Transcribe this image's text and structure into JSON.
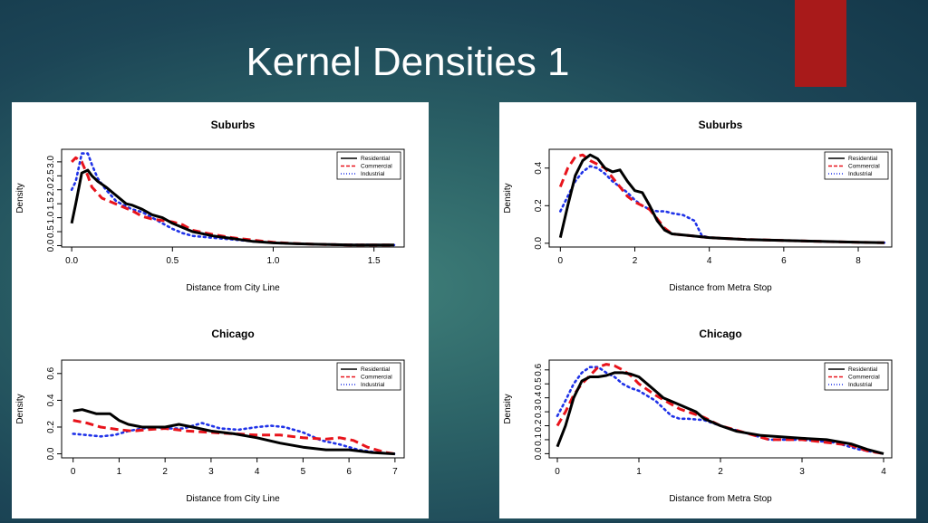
{
  "slide": {
    "title": "Kernel Densities 1"
  },
  "colors": {
    "residential": "#000000",
    "commercial": "#e8131b",
    "industrial": "#1f32e8",
    "accent": "#a81a1a"
  },
  "chart_data": [
    {
      "id": "suburbs-city-line",
      "type": "line",
      "title": "Suburbs",
      "xlabel": "Distance from City Line",
      "ylabel": "Density",
      "xlim": [
        -0.05,
        1.65
      ],
      "ylim": [
        -0.05,
        3.45
      ],
      "xticks": [
        0.0,
        0.5,
        1.0,
        1.5
      ],
      "xticklabels": [
        "0.0",
        "0.5",
        "1.0",
        "1.5"
      ],
      "yticks": [
        0.0,
        0.5,
        1.0,
        1.5,
        2.0,
        2.5,
        3.0
      ],
      "yticklabels": [
        "0.0",
        "0.5",
        "1.0",
        "1.5",
        "2.0",
        "2.5",
        "3.0"
      ],
      "legend": "top-right",
      "series": [
        {
          "name": "Residential",
          "style": "solid",
          "x": [
            0.0,
            0.02,
            0.05,
            0.08,
            0.1,
            0.13,
            0.17,
            0.22,
            0.27,
            0.3,
            0.35,
            0.4,
            0.45,
            0.5,
            0.55,
            0.6,
            0.7,
            0.8,
            0.9,
            1.0,
            1.1,
            1.2,
            1.4,
            1.6
          ],
          "y": [
            0.8,
            1.5,
            2.6,
            2.7,
            2.5,
            2.3,
            2.1,
            1.8,
            1.5,
            1.45,
            1.3,
            1.1,
            1.0,
            0.8,
            0.65,
            0.5,
            0.35,
            0.25,
            0.15,
            0.1,
            0.07,
            0.05,
            0.02,
            0.02
          ]
        },
        {
          "name": "Commercial",
          "style": "dashed",
          "x": [
            0.0,
            0.02,
            0.05,
            0.08,
            0.1,
            0.15,
            0.2,
            0.25,
            0.3,
            0.35,
            0.4,
            0.45,
            0.5,
            0.55,
            0.6,
            0.7,
            0.8,
            0.9,
            1.0,
            1.1,
            1.2,
            1.4,
            1.6
          ],
          "y": [
            3.0,
            3.15,
            3.0,
            2.5,
            2.1,
            1.7,
            1.55,
            1.4,
            1.25,
            1.05,
            0.95,
            0.9,
            0.85,
            0.75,
            0.55,
            0.4,
            0.28,
            0.2,
            0.12,
            0.08,
            0.05,
            0.02,
            0.02
          ]
        },
        {
          "name": "Industrial",
          "style": "dotted",
          "x": [
            0.0,
            0.02,
            0.05,
            0.08,
            0.1,
            0.13,
            0.17,
            0.22,
            0.27,
            0.3,
            0.35,
            0.4,
            0.45,
            0.5,
            0.55,
            0.6,
            0.7,
            0.8,
            0.9,
            1.0,
            1.1,
            1.2,
            1.4,
            1.6
          ],
          "y": [
            2.0,
            2.3,
            3.3,
            3.3,
            2.9,
            2.4,
            2.0,
            1.6,
            1.4,
            1.3,
            1.2,
            1.0,
            0.8,
            0.6,
            0.45,
            0.35,
            0.28,
            0.22,
            0.15,
            0.1,
            0.07,
            0.05,
            0.03,
            0.02
          ]
        }
      ]
    },
    {
      "id": "suburbs-metra-stop",
      "type": "line",
      "title": "Suburbs",
      "xlabel": "Distance from Metra Stop",
      "ylabel": "Density",
      "xlim": [
        -0.3,
        8.9
      ],
      "ylim": [
        -0.02,
        0.5
      ],
      "xticks": [
        0,
        2,
        4,
        6,
        8
      ],
      "xticklabels": [
        "0",
        "2",
        "4",
        "6",
        "8"
      ],
      "yticks": [
        0.0,
        0.2,
        0.4
      ],
      "yticklabels": [
        "0.0",
        "0.2",
        "0.4"
      ],
      "legend": "top-right",
      "series": [
        {
          "name": "Residential",
          "style": "solid",
          "x": [
            0.0,
            0.2,
            0.4,
            0.6,
            0.8,
            1.0,
            1.2,
            1.4,
            1.6,
            1.8,
            2.0,
            2.2,
            2.4,
            2.6,
            2.8,
            3.0,
            3.5,
            4.0,
            5.0,
            6.0,
            7.0,
            8.0,
            8.7
          ],
          "y": [
            0.03,
            0.2,
            0.36,
            0.44,
            0.47,
            0.45,
            0.4,
            0.38,
            0.39,
            0.33,
            0.28,
            0.27,
            0.2,
            0.12,
            0.07,
            0.05,
            0.04,
            0.03,
            0.02,
            0.015,
            0.01,
            0.005,
            0.003
          ]
        },
        {
          "name": "Commercial",
          "style": "dashed",
          "x": [
            0.0,
            0.2,
            0.4,
            0.6,
            0.8,
            1.0,
            1.2,
            1.4,
            1.6,
            1.8,
            2.0,
            2.2,
            2.4,
            2.6,
            2.8,
            3.0,
            3.5,
            4.0,
            5.0,
            6.0,
            7.0,
            8.0,
            8.7
          ],
          "y": [
            0.3,
            0.4,
            0.46,
            0.47,
            0.44,
            0.42,
            0.4,
            0.35,
            0.3,
            0.25,
            0.22,
            0.2,
            0.18,
            0.13,
            0.08,
            0.05,
            0.04,
            0.03,
            0.02,
            0.015,
            0.01,
            0.005,
            0.003
          ]
        },
        {
          "name": "Industrial",
          "style": "dotted",
          "x": [
            0.0,
            0.2,
            0.4,
            0.6,
            0.8,
            1.0,
            1.2,
            1.4,
            1.6,
            1.8,
            2.0,
            2.2,
            2.4,
            2.6,
            2.8,
            3.0,
            3.3,
            3.6,
            3.8,
            4.0,
            5.0,
            6.0,
            7.0,
            8.0,
            8.7
          ],
          "y": [
            0.17,
            0.25,
            0.33,
            0.38,
            0.41,
            0.4,
            0.37,
            0.33,
            0.3,
            0.27,
            0.23,
            0.2,
            0.18,
            0.17,
            0.17,
            0.16,
            0.15,
            0.12,
            0.04,
            0.03,
            0.02,
            0.015,
            0.01,
            0.005,
            0.003
          ]
        }
      ]
    },
    {
      "id": "chicago-city-line",
      "type": "line",
      "title": "Chicago",
      "xlabel": "Distance from City Line",
      "ylabel": "Density",
      "xlim": [
        -0.25,
        7.2
      ],
      "ylim": [
        -0.03,
        0.7
      ],
      "xticks": [
        0,
        1,
        2,
        3,
        4,
        5,
        6,
        7
      ],
      "xticklabels": [
        "0",
        "1",
        "2",
        "3",
        "4",
        "5",
        "6",
        "7"
      ],
      "yticks": [
        0.0,
        0.2,
        0.4,
        0.6
      ],
      "yticklabels": [
        "0.0",
        "0.2",
        "0.4",
        "0.6"
      ],
      "legend": "top-right",
      "series": [
        {
          "name": "Residential",
          "style": "solid",
          "x": [
            0.0,
            0.2,
            0.5,
            0.8,
            1.0,
            1.2,
            1.5,
            1.8,
            2.0,
            2.3,
            2.6,
            3.0,
            3.5,
            4.0,
            4.5,
            5.0,
            5.5,
            6.0,
            6.5,
            7.0
          ],
          "y": [
            0.32,
            0.33,
            0.3,
            0.3,
            0.25,
            0.22,
            0.2,
            0.2,
            0.2,
            0.22,
            0.2,
            0.17,
            0.15,
            0.12,
            0.08,
            0.05,
            0.03,
            0.03,
            0.01,
            0.0
          ]
        },
        {
          "name": "Commercial",
          "style": "dashed",
          "x": [
            0.0,
            0.3,
            0.6,
            1.0,
            1.3,
            1.6,
            2.0,
            2.5,
            3.0,
            3.5,
            4.0,
            4.5,
            5.0,
            5.5,
            5.8,
            6.1,
            6.4,
            6.8,
            7.0
          ],
          "y": [
            0.25,
            0.23,
            0.2,
            0.18,
            0.17,
            0.18,
            0.19,
            0.17,
            0.16,
            0.15,
            0.14,
            0.14,
            0.12,
            0.11,
            0.12,
            0.1,
            0.05,
            0.01,
            0.0
          ]
        },
        {
          "name": "Industrial",
          "style": "dotted",
          "x": [
            0.0,
            0.3,
            0.6,
            0.9,
            1.2,
            1.5,
            1.8,
            2.1,
            2.4,
            2.8,
            3.2,
            3.6,
            4.0,
            4.3,
            4.6,
            5.0,
            5.4,
            5.8,
            6.2,
            6.6,
            7.0
          ],
          "y": [
            0.15,
            0.14,
            0.13,
            0.14,
            0.17,
            0.19,
            0.2,
            0.19,
            0.19,
            0.23,
            0.19,
            0.18,
            0.2,
            0.21,
            0.2,
            0.16,
            0.1,
            0.07,
            0.03,
            0.01,
            0.0
          ]
        }
      ]
    },
    {
      "id": "chicago-metra-stop",
      "type": "line",
      "title": "Chicago",
      "xlabel": "Distance from Metra Stop",
      "ylabel": "Density",
      "xlim": [
        -0.1,
        4.1
      ],
      "ylim": [
        -0.03,
        0.67
      ],
      "xticks": [
        0,
        1,
        2,
        3,
        4
      ],
      "xticklabels": [
        "0",
        "1",
        "2",
        "3",
        "4"
      ],
      "yticks": [
        0.0,
        0.1,
        0.2,
        0.3,
        0.4,
        0.5,
        0.6
      ],
      "yticklabels": [
        "0.0",
        "0.1",
        "0.2",
        "0.3",
        "0.4",
        "0.5",
        "0.6"
      ],
      "legend": "top-right",
      "series": [
        {
          "name": "Residential",
          "style": "solid",
          "x": [
            0.0,
            0.1,
            0.2,
            0.3,
            0.4,
            0.5,
            0.6,
            0.7,
            0.8,
            0.9,
            1.0,
            1.1,
            1.2,
            1.3,
            1.5,
            1.7,
            1.8,
            2.0,
            2.2,
            2.5,
            3.0,
            3.3,
            3.6,
            3.8,
            4.0
          ],
          "y": [
            0.05,
            0.2,
            0.4,
            0.52,
            0.55,
            0.55,
            0.56,
            0.58,
            0.58,
            0.57,
            0.55,
            0.5,
            0.45,
            0.4,
            0.35,
            0.3,
            0.25,
            0.2,
            0.16,
            0.13,
            0.11,
            0.1,
            0.07,
            0.03,
            0.0
          ]
        },
        {
          "name": "Commercial",
          "style": "dashed",
          "x": [
            0.0,
            0.1,
            0.2,
            0.3,
            0.4,
            0.5,
            0.6,
            0.7,
            0.8,
            0.9,
            1.0,
            1.2,
            1.5,
            1.8,
            2.0,
            2.3,
            2.6,
            3.0,
            3.3,
            3.6,
            3.8,
            4.0
          ],
          "y": [
            0.2,
            0.3,
            0.42,
            0.5,
            0.56,
            0.62,
            0.64,
            0.63,
            0.6,
            0.56,
            0.5,
            0.42,
            0.32,
            0.26,
            0.2,
            0.15,
            0.1,
            0.1,
            0.08,
            0.06,
            0.02,
            0.0
          ]
        },
        {
          "name": "Industrial",
          "style": "dotted",
          "x": [
            0.0,
            0.1,
            0.2,
            0.3,
            0.4,
            0.5,
            0.6,
            0.7,
            0.8,
            0.9,
            1.0,
            1.2,
            1.4,
            1.5,
            1.6,
            1.8,
            2.0,
            2.3,
            2.6,
            3.0,
            3.4,
            3.7,
            4.0
          ],
          "y": [
            0.27,
            0.38,
            0.5,
            0.58,
            0.62,
            0.62,
            0.58,
            0.55,
            0.5,
            0.47,
            0.45,
            0.38,
            0.27,
            0.25,
            0.25,
            0.24,
            0.2,
            0.15,
            0.1,
            0.1,
            0.08,
            0.03,
            0.0
          ]
        }
      ]
    }
  ]
}
